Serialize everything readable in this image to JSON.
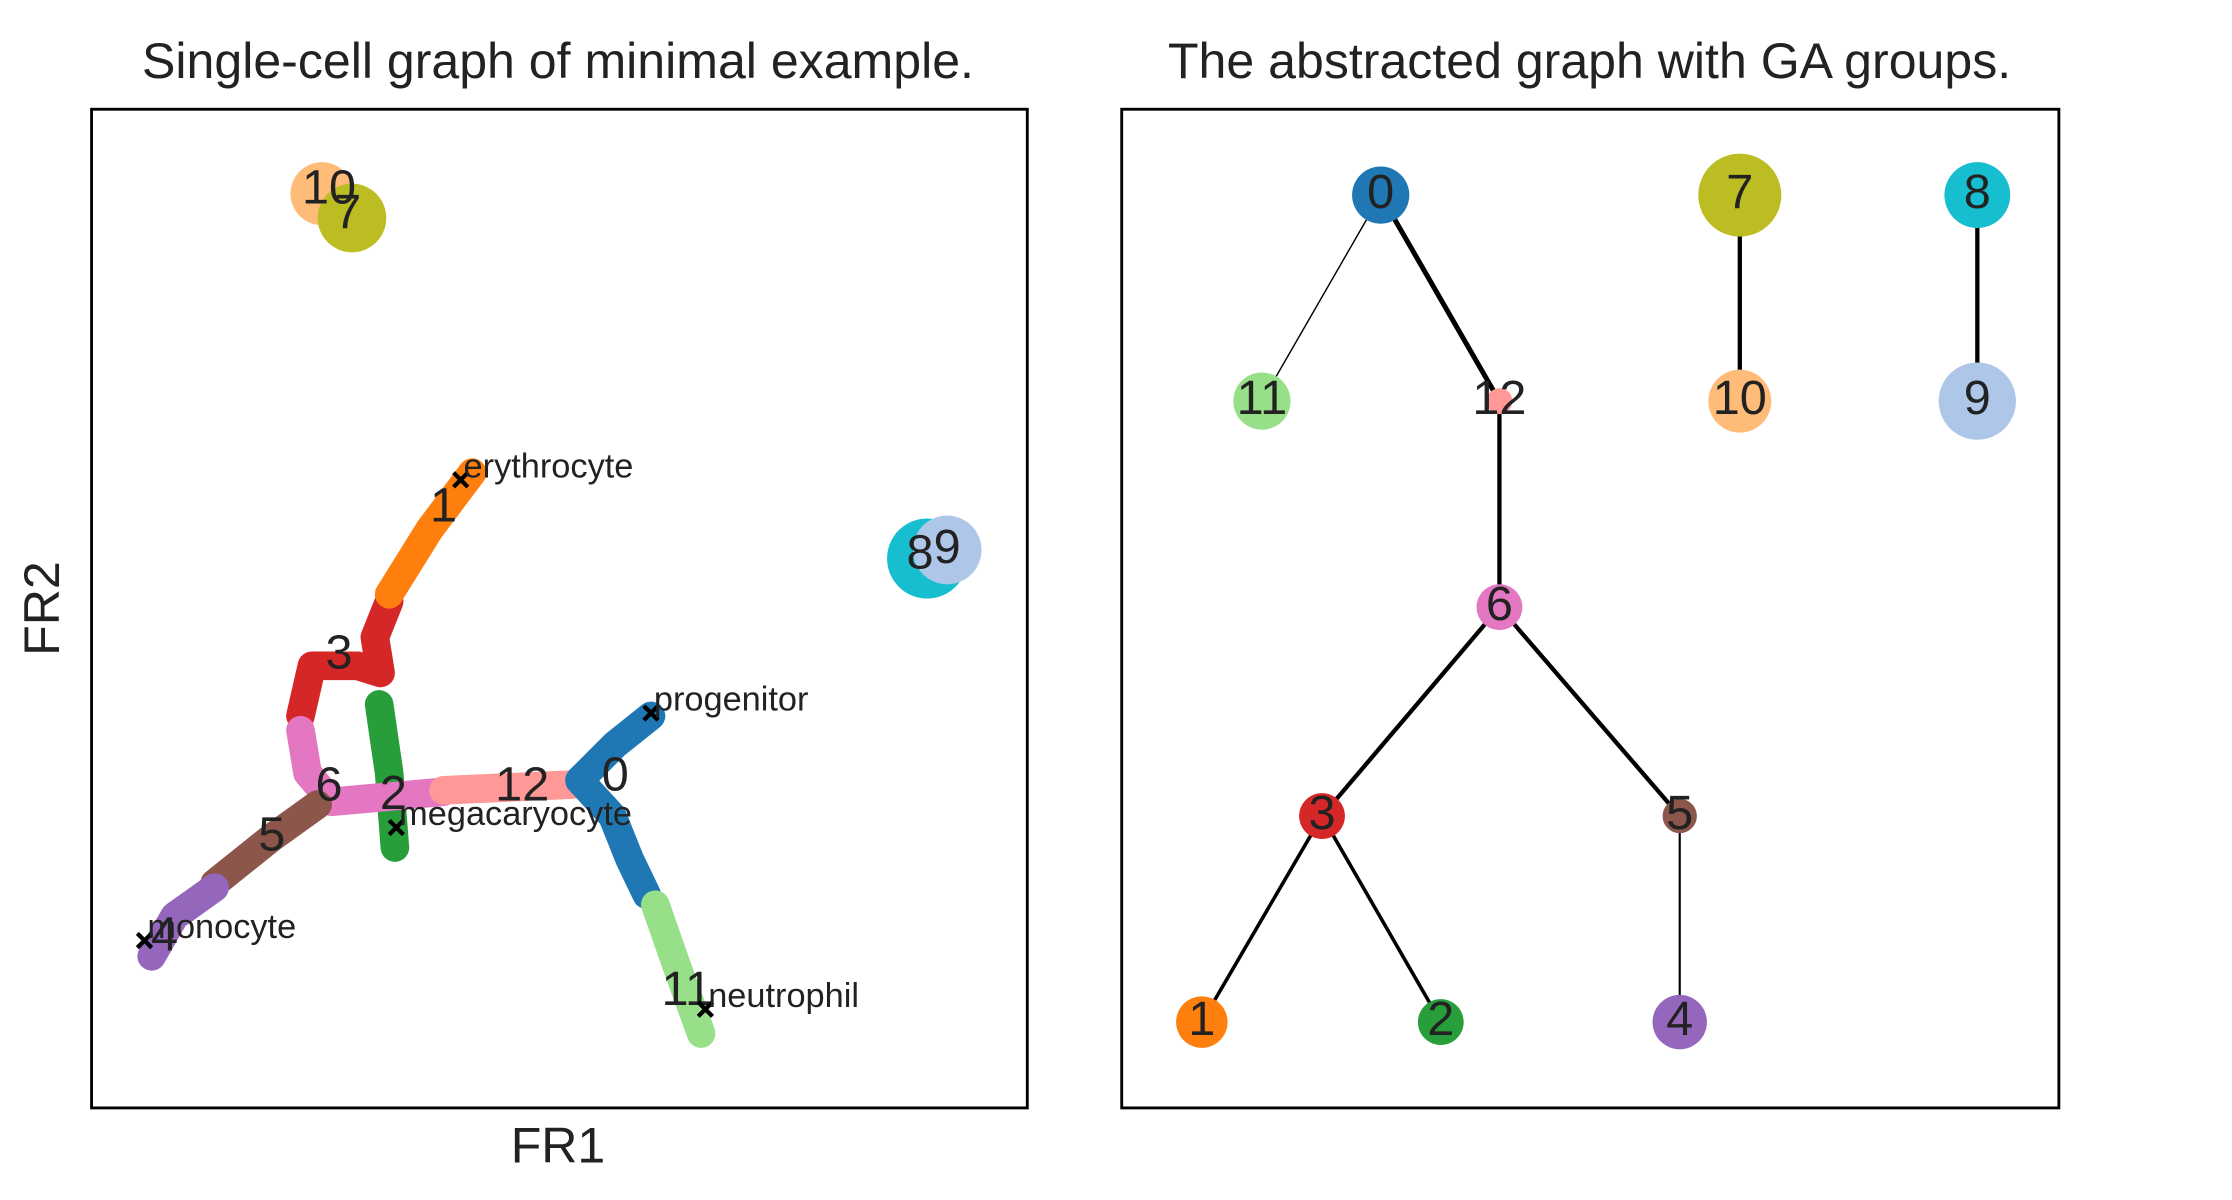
{
  "panels": [
    {
      "title": "Single-cell graph of minimal example.",
      "xlabel": "FR1",
      "ylabel": "FR2"
    },
    {
      "title": "The abstracted graph with GA groups."
    }
  ],
  "groups": [
    {
      "label": "0",
      "color": "#1f77b4"
    },
    {
      "label": "1",
      "color": "#ff7f0e"
    },
    {
      "label": "2",
      "color": "#279e3a"
    },
    {
      "label": "3",
      "color": "#d62728"
    },
    {
      "label": "4",
      "color": "#9467bd"
    },
    {
      "label": "5",
      "color": "#8c564b"
    },
    {
      "label": "6",
      "color": "#e377c2"
    },
    {
      "label": "7",
      "color": "#bcbd22"
    },
    {
      "label": "8",
      "color": "#17becf"
    },
    {
      "label": "9",
      "color": "#aec7e8"
    },
    {
      "label": "10",
      "color": "#ffbb78"
    },
    {
      "label": "11",
      "color": "#98df8a"
    },
    {
      "label": "12",
      "color": "#ff9896"
    }
  ],
  "annotations": [
    "progenitor",
    "erythrocyte",
    "megacaryocyte",
    "monocyte",
    "neutrophil"
  ]
}
